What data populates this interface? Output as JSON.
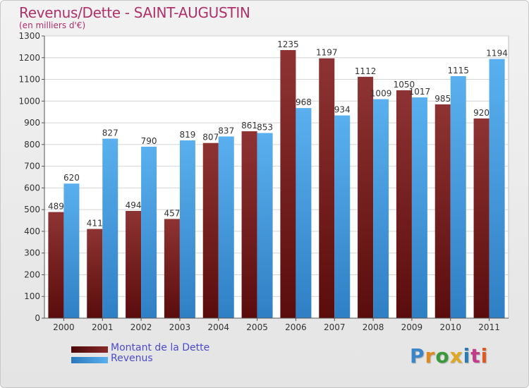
{
  "header": {
    "title": "Revenus/Dette - SAINT-AUGUSTIN",
    "subtitle": "(en milliers d'€)"
  },
  "legend": [
    {
      "label": "Montant de la Dette",
      "color": "#7a1e1e"
    },
    {
      "label": "Revenus",
      "color": "#4aa3e6"
    }
  ],
  "logo": {
    "text": "Proxiti",
    "colors": [
      "#3a86c8",
      "#e08a1e",
      "#3a9a3a",
      "#e0a81e",
      "#2a7ab8",
      "#c23a8a",
      "#e05a1e"
    ]
  },
  "chart_data": {
    "type": "bar",
    "categories": [
      "2000",
      "2001",
      "2002",
      "2003",
      "2004",
      "2005",
      "2006",
      "2007",
      "2008",
      "2009",
      "2010",
      "2011"
    ],
    "series": [
      {
        "name": "Montant de la Dette",
        "color": "#7a1e1e",
        "values": [
          489,
          411,
          494,
          457,
          807,
          861,
          1235,
          1197,
          1112,
          1050,
          985,
          920
        ]
      },
      {
        "name": "Revenus",
        "color": "#4aa3e6",
        "values": [
          620,
          827,
          790,
          819,
          837,
          853,
          968,
          934,
          1009,
          1017,
          1115,
          1194
        ]
      }
    ],
    "ylim": [
      0,
      1300
    ],
    "yticks": [
      0,
      100,
      200,
      300,
      400,
      500,
      600,
      700,
      800,
      900,
      1000,
      1100,
      1200,
      1300
    ],
    "grid": true,
    "legend_position": "bottom-left"
  }
}
